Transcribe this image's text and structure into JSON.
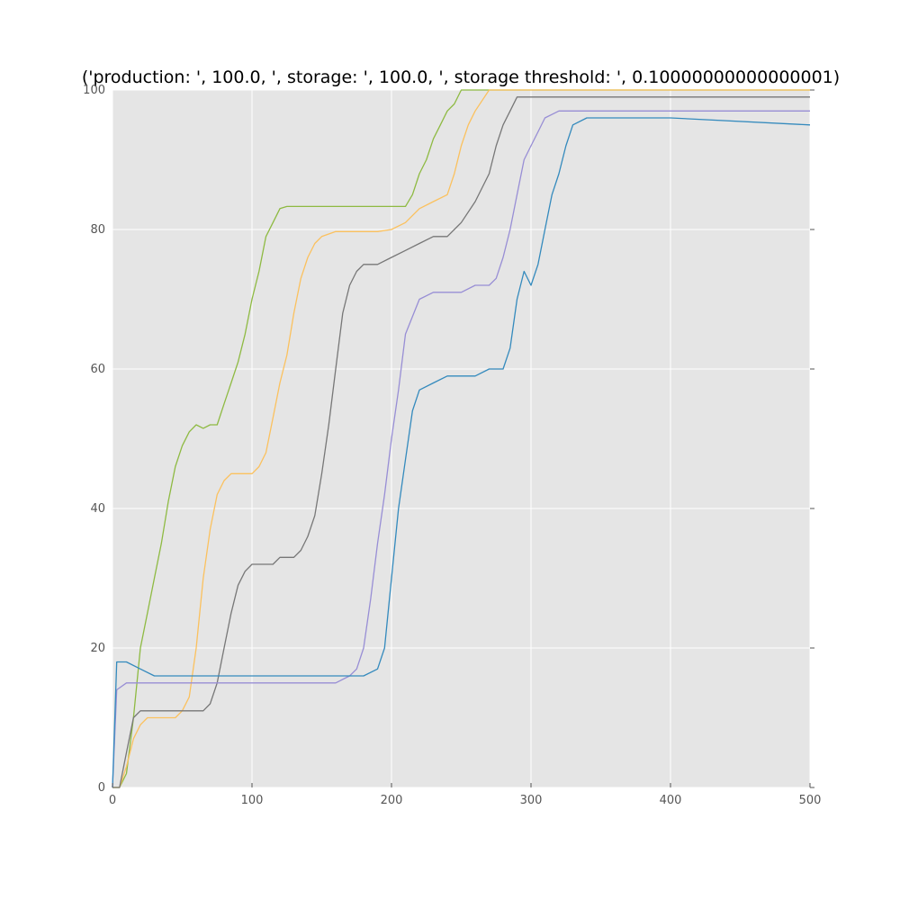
{
  "chart_data": {
    "type": "line",
    "title": "('production: ', 100.0, ', storage: ', 100.0, ', storage threshold: ', 0.10000000000000001)",
    "xlabel": "",
    "ylabel": "",
    "xlim": [
      0,
      500
    ],
    "ylim": [
      0,
      100
    ],
    "x_ticks": [
      0,
      100,
      200,
      300,
      400,
      500
    ],
    "y_ticks": [
      0,
      20,
      40,
      60,
      80,
      100
    ],
    "grid": true,
    "background_color": "#e5e5e5",
    "grid_color": "#ffffff",
    "series": [
      {
        "color": "#8eba42",
        "x": [
          0,
          5,
          10,
          15,
          20,
          25,
          30,
          35,
          40,
          45,
          50,
          55,
          60,
          65,
          70,
          75,
          80,
          85,
          90,
          95,
          100,
          105,
          110,
          115,
          120,
          125,
          130,
          140,
          150,
          160,
          170,
          180,
          190,
          200,
          210,
          215,
          220,
          225,
          230,
          235,
          240,
          245,
          250,
          260,
          300,
          400,
          500
        ],
        "y": [
          0,
          0,
          2,
          10,
          20,
          25,
          30,
          35,
          41,
          46,
          49,
          51,
          52,
          51.5,
          52,
          52,
          55,
          58,
          61,
          65,
          70,
          74,
          79,
          81,
          83,
          83.3,
          83.3,
          83.3,
          83.3,
          83.3,
          83.3,
          83.3,
          83.3,
          83.3,
          83.3,
          85,
          88,
          90,
          93,
          95,
          97,
          98,
          100,
          100,
          100,
          100,
          100
        ]
      },
      {
        "color": "#fbc15e",
        "x": [
          0,
          5,
          10,
          15,
          20,
          25,
          30,
          35,
          40,
          45,
          50,
          55,
          60,
          65,
          70,
          75,
          80,
          85,
          90,
          95,
          100,
          105,
          110,
          115,
          120,
          125,
          130,
          135,
          140,
          145,
          150,
          160,
          170,
          180,
          190,
          200,
          210,
          220,
          230,
          240,
          245,
          250,
          255,
          260,
          270,
          280,
          300,
          400,
          500
        ],
        "y": [
          0,
          0,
          3,
          7,
          9,
          10,
          10,
          10,
          10,
          10,
          11,
          13,
          20,
          30,
          37,
          42,
          44,
          45,
          45,
          45,
          45,
          46,
          48,
          53,
          58,
          62,
          68,
          73,
          76,
          78,
          79,
          79.7,
          79.7,
          79.7,
          79.7,
          80,
          81,
          83,
          84,
          85,
          88,
          92,
          95,
          97,
          100,
          100,
          100,
          100,
          100
        ]
      },
      {
        "color": "#777777",
        "x": [
          0,
          5,
          10,
          15,
          20,
          25,
          30,
          35,
          40,
          45,
          50,
          55,
          60,
          65,
          70,
          75,
          80,
          85,
          90,
          95,
          100,
          105,
          110,
          115,
          120,
          125,
          130,
          135,
          140,
          145,
          150,
          155,
          160,
          165,
          170,
          175,
          180,
          190,
          200,
          210,
          220,
          230,
          240,
          250,
          260,
          270,
          275,
          280,
          285,
          290,
          300,
          400,
          500
        ],
        "y": [
          0,
          0,
          5,
          10,
          11,
          11,
          11,
          11,
          11,
          11,
          11,
          11,
          11,
          11,
          12,
          15,
          20,
          25,
          29,
          31,
          32,
          32,
          32,
          32,
          33,
          33,
          33,
          34,
          36,
          39,
          45,
          52,
          60,
          68,
          72,
          74,
          75,
          75,
          76,
          77,
          78,
          79,
          79,
          81,
          84,
          88,
          92,
          95,
          97,
          99,
          99,
          99,
          99
        ]
      },
      {
        "color": "#988ed5",
        "x": [
          0,
          3,
          10,
          20,
          30,
          40,
          50,
          60,
          70,
          80,
          90,
          100,
          110,
          120,
          130,
          140,
          150,
          160,
          170,
          175,
          180,
          185,
          190,
          195,
          200,
          205,
          210,
          220,
          230,
          240,
          250,
          260,
          270,
          275,
          280,
          285,
          290,
          295,
          300,
          305,
          310,
          320,
          330,
          400,
          500
        ],
        "y": [
          0,
          14,
          15,
          15,
          15,
          15,
          15,
          15,
          15,
          15,
          15,
          15,
          15,
          15,
          15,
          15,
          15,
          15,
          16,
          17,
          20,
          27,
          35,
          42,
          50,
          57,
          65,
          70,
          71,
          71,
          71,
          72,
          72,
          73,
          76,
          80,
          85,
          90,
          92,
          94,
          96,
          97,
          97,
          97,
          97
        ]
      },
      {
        "color": "#348abd",
        "x": [
          0,
          3,
          10,
          20,
          30,
          40,
          50,
          60,
          70,
          80,
          90,
          100,
          110,
          120,
          130,
          140,
          150,
          160,
          170,
          180,
          190,
          195,
          200,
          205,
          210,
          215,
          220,
          230,
          240,
          250,
          260,
          270,
          280,
          285,
          290,
          295,
          300,
          305,
          310,
          315,
          320,
          325,
          330,
          340,
          400,
          500
        ],
        "y": [
          0,
          18,
          18,
          17,
          16,
          16,
          16,
          16,
          16,
          16,
          16,
          16,
          16,
          16,
          16,
          16,
          16,
          16,
          16,
          16,
          17,
          20,
          30,
          40,
          47,
          54,
          57,
          58,
          59,
          59,
          59,
          60,
          60,
          63,
          70,
          74,
          72,
          75,
          80,
          85,
          88,
          92,
          95,
          96,
          96,
          95
        ]
      }
    ]
  }
}
